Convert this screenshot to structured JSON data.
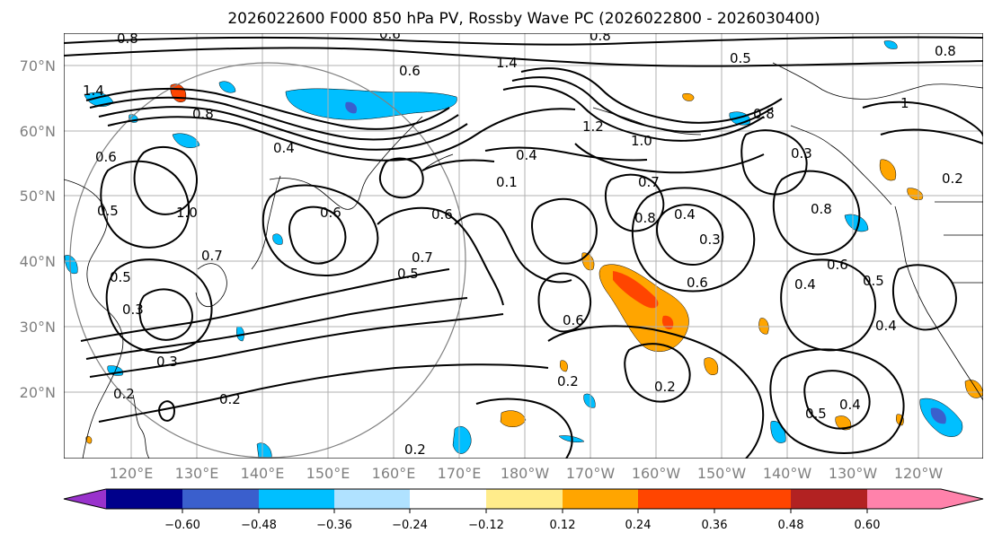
{
  "title": "2026022600 F000 850 hPa PV, Rossby Wave PC (2026022800 - 2026030400)",
  "map": {
    "lat_labels": [
      "70°N",
      "60°N",
      "50°N",
      "40°N",
      "30°N",
      "20°N"
    ],
    "lon_labels": [
      "120°E",
      "130°E",
      "140°E",
      "150°E",
      "160°E",
      "170°E",
      "180°W",
      "170°W",
      "160°W",
      "150°W",
      "140°W",
      "130°W",
      "120°W"
    ],
    "contour_labels": [
      "0.8",
      "0.6",
      "0.8",
      "1.4",
      "0.6",
      "0.5",
      "0.8",
      "1.4",
      "0.8",
      "1",
      "0.8",
      "0.4",
      "0.6",
      "1.2",
      "1.0",
      "0.4",
      "0.3",
      "0.2",
      "0.5",
      "1.0",
      "0.6",
      "0.7",
      "0.8",
      "0.4",
      "0.3",
      "0.6",
      "0.5",
      "0.7",
      "0.5",
      "0.6",
      "0.4",
      "0.6",
      "0.5",
      "0.4",
      "0.2",
      "0.3",
      "0.2",
      "0.2",
      "0.2",
      "0.5",
      "0.4",
      "0.6",
      "0.8",
      "0.3",
      "0.2",
      "0.1",
      "0.7"
    ]
  },
  "colorbar": {
    "colors": [
      "#9932cc",
      "#00008b",
      "#3a5fcd",
      "#00bfff",
      "#b0e2ff",
      "#ffffff",
      "#ffec8b",
      "#ffa500",
      "#ff4500",
      "#b22222",
      "#ff82ab"
    ],
    "ticks": [
      "−0.60",
      "−0.48",
      "−0.36",
      "−0.24",
      "−0.12",
      "0.12",
      "0.24",
      "0.36",
      "0.48",
      "0.60"
    ]
  },
  "colors": {
    "axis_text": "#7f7f7f",
    "grid": "#b0b0b0",
    "contour": "#000000"
  }
}
